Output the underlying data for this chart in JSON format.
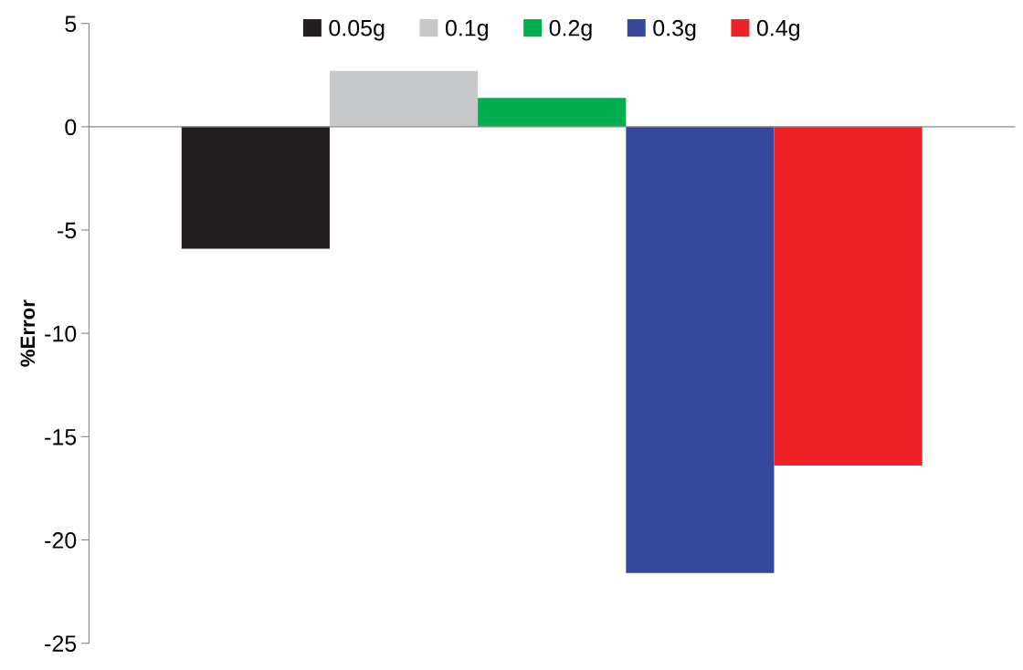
{
  "chart_data": {
    "type": "bar",
    "ylabel": "%Error",
    "categories": [
      null
    ],
    "series": [
      {
        "name": "0.05g",
        "color": "#231f20",
        "values": [
          -5.9
        ]
      },
      {
        "name": "0.1g",
        "color": "#c7c8ca",
        "values": [
          2.7
        ]
      },
      {
        "name": "0.2g",
        "color": "#00b050",
        "values": [
          1.4
        ]
      },
      {
        "name": "0.3g",
        "color": "#35489c",
        "values": [
          -21.6
        ]
      },
      {
        "name": "0.4g",
        "color": "#ee2226",
        "values": [
          -16.4
        ]
      }
    ],
    "ylim": [
      -25,
      5
    ],
    "yticks": [
      -25,
      -20,
      -15,
      -10,
      -5,
      0,
      5
    ],
    "legend": "top",
    "tick_labels": "y"
  }
}
